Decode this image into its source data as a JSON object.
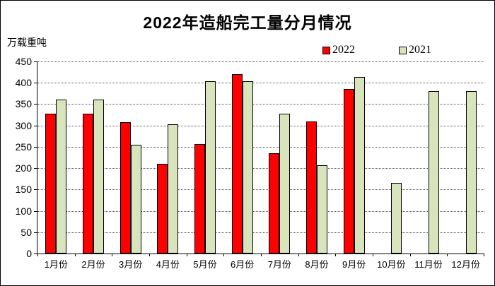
{
  "chart_data": {
    "type": "bar",
    "title": "2022年造船完工量分月情况",
    "unit_label": "万载重吨",
    "categories": [
      "1月份",
      "2月份",
      "3月份",
      "4月份",
      "5月份",
      "6月份",
      "7月份",
      "8月份",
      "9月份",
      "10月份",
      "11月份",
      "12月份"
    ],
    "series": [
      {
        "name": "2022",
        "color": "#FF0000",
        "values": [
          327,
          327,
          308,
          210,
          256,
          421,
          235,
          310,
          386,
          null,
          null,
          null
        ]
      },
      {
        "name": "2021",
        "color": "#D8E4BC",
        "values": [
          361,
          361,
          255,
          302,
          404,
          404,
          327,
          207,
          414,
          166,
          381,
          381
        ]
      }
    ],
    "ylim": [
      0,
      450
    ],
    "ytick_step": 50,
    "yticks": [
      0,
      50,
      100,
      150,
      200,
      250,
      300,
      350,
      400,
      450
    ],
    "grid": "horizontal-dotted",
    "legend_position": "top-right",
    "colors": {
      "bar_border": "#000000",
      "gridline": "#555555",
      "background": "#FFFFFF"
    }
  }
}
